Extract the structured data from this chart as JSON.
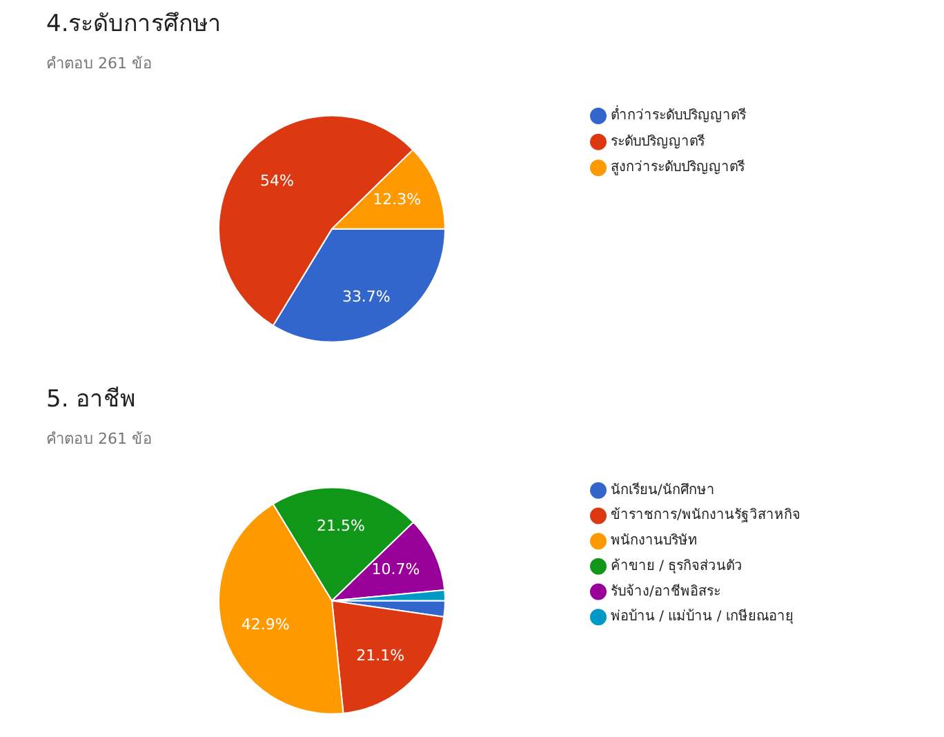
{
  "chart_data": [
    {
      "type": "pie",
      "title": "4.ระดับการศึกษา",
      "subtitle": "คำตอบ 261 ข้อ",
      "legend": "right",
      "categories": [
        "ต่ำกว่าระดับปริญญาตรี",
        "ระดับปริญญาตรี",
        "สูงกว่าระดับปริญญาตรี"
      ],
      "values": [
        33.7,
        54,
        12.3
      ],
      "colors": [
        "#3366cc",
        "#dc3912",
        "#ff9900"
      ],
      "value_labels": [
        "33.7%",
        "54%",
        "12.3%"
      ]
    },
    {
      "type": "pie",
      "title": "5. อาชีพ",
      "subtitle": "คำตอบ 261 ข้อ",
      "legend": "right",
      "categories": [
        "นักเรียน/นักศึกษา",
        "ข้าราชการ/พนักงานรัฐวิสาหกิจ",
        "พนักงานบริษัท",
        "ค้าขาย / ธุรกิจส่วนตัว",
        "รับจ้าง/อาชีพอิสระ",
        "พ่อบ้าน / แม่บ้าน / เกษียณอายุ"
      ],
      "values": [
        2.3,
        21.1,
        42.9,
        21.5,
        10.7,
        1.5
      ],
      "colors": [
        "#3366cc",
        "#dc3912",
        "#ff9900",
        "#109618",
        "#990099",
        "#0099c6"
      ],
      "value_labels": [
        null,
        "21.1%",
        "42.9%",
        "21.5%",
        "10.7%",
        null
      ]
    }
  ]
}
